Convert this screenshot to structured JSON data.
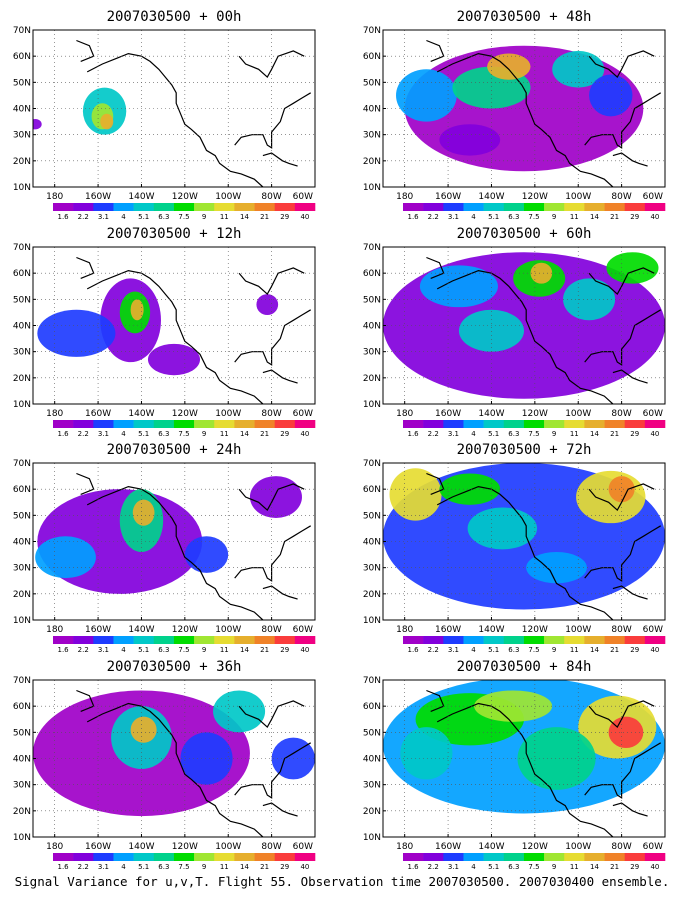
{
  "caption": "Signal Variance for u,v,T. Flight 55. Observation time 2007030500. 2007030400 ensemble.",
  "colorbar": {
    "labels": [
      "1.6",
      "2.2",
      "3.1",
      "4",
      "5.1",
      "6.3",
      "7.5",
      "9",
      "11",
      "14",
      "21",
      "29",
      "40"
    ],
    "colors": [
      "#a000c8",
      "#8200dc",
      "#1e3cff",
      "#00a0ff",
      "#00c8c8",
      "#00d28c",
      "#00dc00",
      "#a0e632",
      "#e6dc32",
      "#e6af2d",
      "#f08228",
      "#fa3c3c",
      "#f00082"
    ]
  },
  "chart_data": [
    {
      "type": "heatmap",
      "title": "2007030500 + 00h",
      "xticks": [
        "180",
        "160W",
        "140W",
        "120W",
        "100W",
        "80W",
        "60W"
      ],
      "yticks": [
        "10N",
        "20N",
        "30N",
        "40N",
        "50N",
        "60N",
        "70N"
      ],
      "xlim": [
        -190,
        -60
      ],
      "ylim": [
        10,
        70
      ],
      "grid": true
    },
    {
      "type": "heatmap",
      "title": "2007030500 + 48h",
      "xticks": [
        "180",
        "160W",
        "140W",
        "120W",
        "100W",
        "80W",
        "60W"
      ],
      "yticks": [
        "10N",
        "20N",
        "30N",
        "40N",
        "50N",
        "60N",
        "70N"
      ],
      "xlim": [
        -190,
        -60
      ],
      "ylim": [
        10,
        70
      ],
      "grid": true
    },
    {
      "type": "heatmap",
      "title": "2007030500 + 12h",
      "xticks": [
        "180",
        "160W",
        "140W",
        "120W",
        "100W",
        "80W",
        "60W"
      ],
      "yticks": [
        "10N",
        "20N",
        "30N",
        "40N",
        "50N",
        "60N",
        "70N"
      ],
      "xlim": [
        -190,
        -60
      ],
      "ylim": [
        10,
        70
      ],
      "grid": true
    },
    {
      "type": "heatmap",
      "title": "2007030500 + 60h",
      "xticks": [
        "180",
        "160W",
        "140W",
        "120W",
        "100W",
        "80W",
        "60W"
      ],
      "yticks": [
        "10N",
        "20N",
        "30N",
        "40N",
        "50N",
        "60N",
        "70N"
      ],
      "xlim": [
        -190,
        -60
      ],
      "ylim": [
        10,
        70
      ],
      "grid": true
    },
    {
      "type": "heatmap",
      "title": "2007030500 + 24h",
      "xticks": [
        "180",
        "160W",
        "140W",
        "120W",
        "100W",
        "80W",
        "60W"
      ],
      "yticks": [
        "10N",
        "20N",
        "30N",
        "40N",
        "50N",
        "60N",
        "70N"
      ],
      "xlim": [
        -190,
        -60
      ],
      "ylim": [
        10,
        70
      ],
      "grid": true
    },
    {
      "type": "heatmap",
      "title": "2007030500 + 72h",
      "xticks": [
        "180",
        "160W",
        "140W",
        "120W",
        "100W",
        "80W",
        "60W"
      ],
      "yticks": [
        "10N",
        "20N",
        "30N",
        "40N",
        "50N",
        "60N",
        "70N"
      ],
      "xlim": [
        -190,
        -60
      ],
      "ylim": [
        10,
        70
      ],
      "grid": true
    },
    {
      "type": "heatmap",
      "title": "2007030500 + 36h",
      "xticks": [
        "180",
        "160W",
        "140W",
        "120W",
        "100W",
        "80W",
        "60W"
      ],
      "yticks": [
        "10N",
        "20N",
        "30N",
        "40N",
        "50N",
        "60N",
        "70N"
      ],
      "xlim": [
        -190,
        -60
      ],
      "ylim": [
        10,
        70
      ],
      "grid": true
    },
    {
      "type": "heatmap",
      "title": "2007030500 + 84h",
      "xticks": [
        "180",
        "160W",
        "140W",
        "120W",
        "100W",
        "80W",
        "60W"
      ],
      "yticks": [
        "10N",
        "20N",
        "30N",
        "40N",
        "50N",
        "60N",
        "70N"
      ],
      "xlim": [
        -190,
        -60
      ],
      "ylim": [
        10,
        70
      ],
      "grid": true
    }
  ]
}
